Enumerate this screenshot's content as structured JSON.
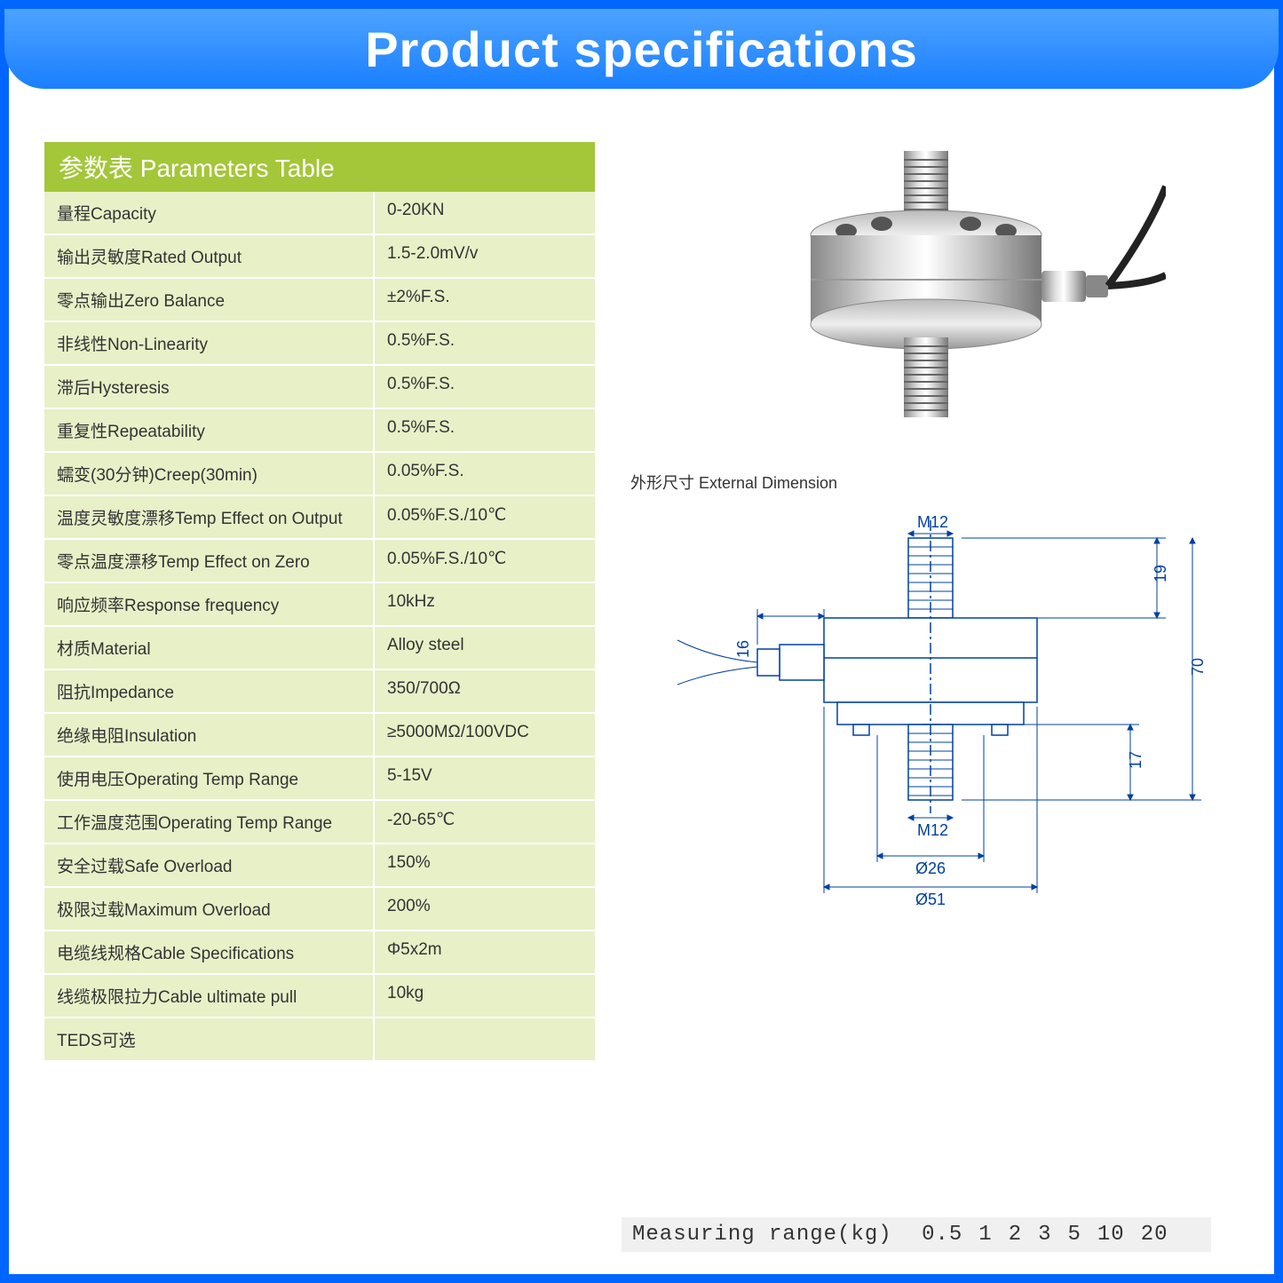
{
  "header": {
    "title": "Product specifications"
  },
  "table": {
    "header": "参数表   Parameters Table",
    "rows": [
      {
        "label": "量程Capacity",
        "value": "0-20KN"
      },
      {
        "label": "输出灵敏度Rated Output",
        "value": "1.5-2.0mV/v"
      },
      {
        "label": "零点输出Zero Balance",
        "value": "±2%F.S."
      },
      {
        "label": "非线性Non-Linearity",
        "value": "0.5%F.S."
      },
      {
        "label": "滞后Hysteresis",
        "value": "0.5%F.S."
      },
      {
        "label": "重复性Repeatability",
        "value": "0.5%F.S."
      },
      {
        "label": "蠕变(30分钟)Creep(30min)",
        "value": "0.05%F.S."
      },
      {
        "label": "温度灵敏度漂移Temp Effect on Output",
        "value": "0.05%F.S./10℃"
      },
      {
        "label": "零点温度漂移Temp Effect on Zero",
        "value": "0.05%F.S./10℃"
      },
      {
        "label": "响应频率Response frequency",
        "value": "10kHz"
      },
      {
        "label": "材质Material",
        "value": "Alloy steel"
      },
      {
        "label": "阻抗Impedance",
        "value": "350/700Ω"
      },
      {
        "label": "绝缘电阻Insulation",
        "value": "≥5000MΩ/100VDC"
      },
      {
        "label": "使用电压Operating Temp Range",
        "value": "5-15V"
      },
      {
        "label": "工作温度范围Operating Temp Range",
        "value": "-20-65℃"
      },
      {
        "label": "安全过载Safe Overload",
        "value": "150%"
      },
      {
        "label": "极限过载Maximum Overload",
        "value": "200%"
      },
      {
        "label": "电缆线规格Cable Specifications",
        "value": "Φ5x2m"
      },
      {
        "label": "线缆极限拉力Cable ultimate pull",
        "value": "10kg"
      },
      {
        "label": "TEDS可选",
        "value": ""
      }
    ]
  },
  "dimension_label": "外形尺寸 External Dimension",
  "drawing": {
    "top_thread": "M12",
    "bottom_thread": "M12",
    "dim_19": "19",
    "dim_70": "70",
    "dim_17": "17",
    "dim_16": "16",
    "dia_26": "Ø26",
    "dia_51": "Ø51"
  },
  "measuring": {
    "label": "Measuring range(kg)",
    "values": [
      "0.5",
      "1",
      "2",
      "3",
      "5",
      "10",
      "20"
    ]
  },
  "colors": {
    "border": "#0066ff",
    "header_grad_top": "#4da3ff",
    "header_grad_bot": "#1a7fff",
    "table_header": "#a4c639",
    "row_bg": "#e8f0c8"
  }
}
